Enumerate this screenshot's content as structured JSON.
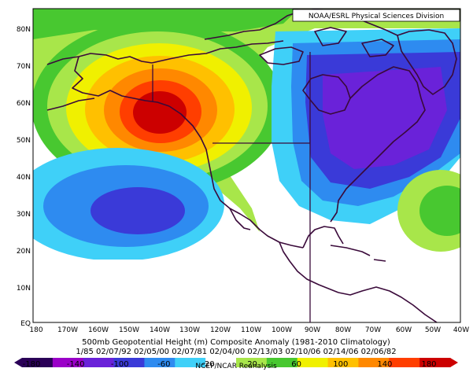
{
  "header": {
    "credit": "NOAA/ESRL Physical Sciences Division"
  },
  "map": {
    "lat_labels": [
      "80N",
      "70N",
      "60N",
      "50N",
      "40N",
      "30N",
      "20N",
      "10N",
      "EQ"
    ],
    "lon_labels": [
      "180",
      "170W",
      "160W",
      "150W",
      "140W",
      "130W",
      "120W",
      "110W",
      "100W",
      "90W",
      "80W",
      "70W",
      "60W",
      "50W",
      "40W"
    ]
  },
  "footer": {
    "title": "500mb Geopotential Height (m) Composite Anomaly (1981-2010 Climatology)",
    "dates": "1/85 02/07/92 02/05/00 02/07/81 02/04/00 02/13/03 02/10/06 02/14/06 02/06/82",
    "source": "NCEP/NCAR Reanalysis"
  },
  "colorbar": {
    "tick_labels": [
      "-180",
      "-140",
      "-100",
      "-60",
      "-20",
      "20",
      "60",
      "100",
      "140",
      "180"
    ],
    "colors": [
      "#2a0057",
      "#9a00c8",
      "#6a22d9",
      "#3a3ad8",
      "#2e8bf0",
      "#3fd0f8",
      "#ffffff",
      "#a8e64a",
      "#48c830",
      "#f0f000",
      "#ffc000",
      "#ff8800",
      "#ff3e00",
      "#cc0000"
    ]
  }
}
